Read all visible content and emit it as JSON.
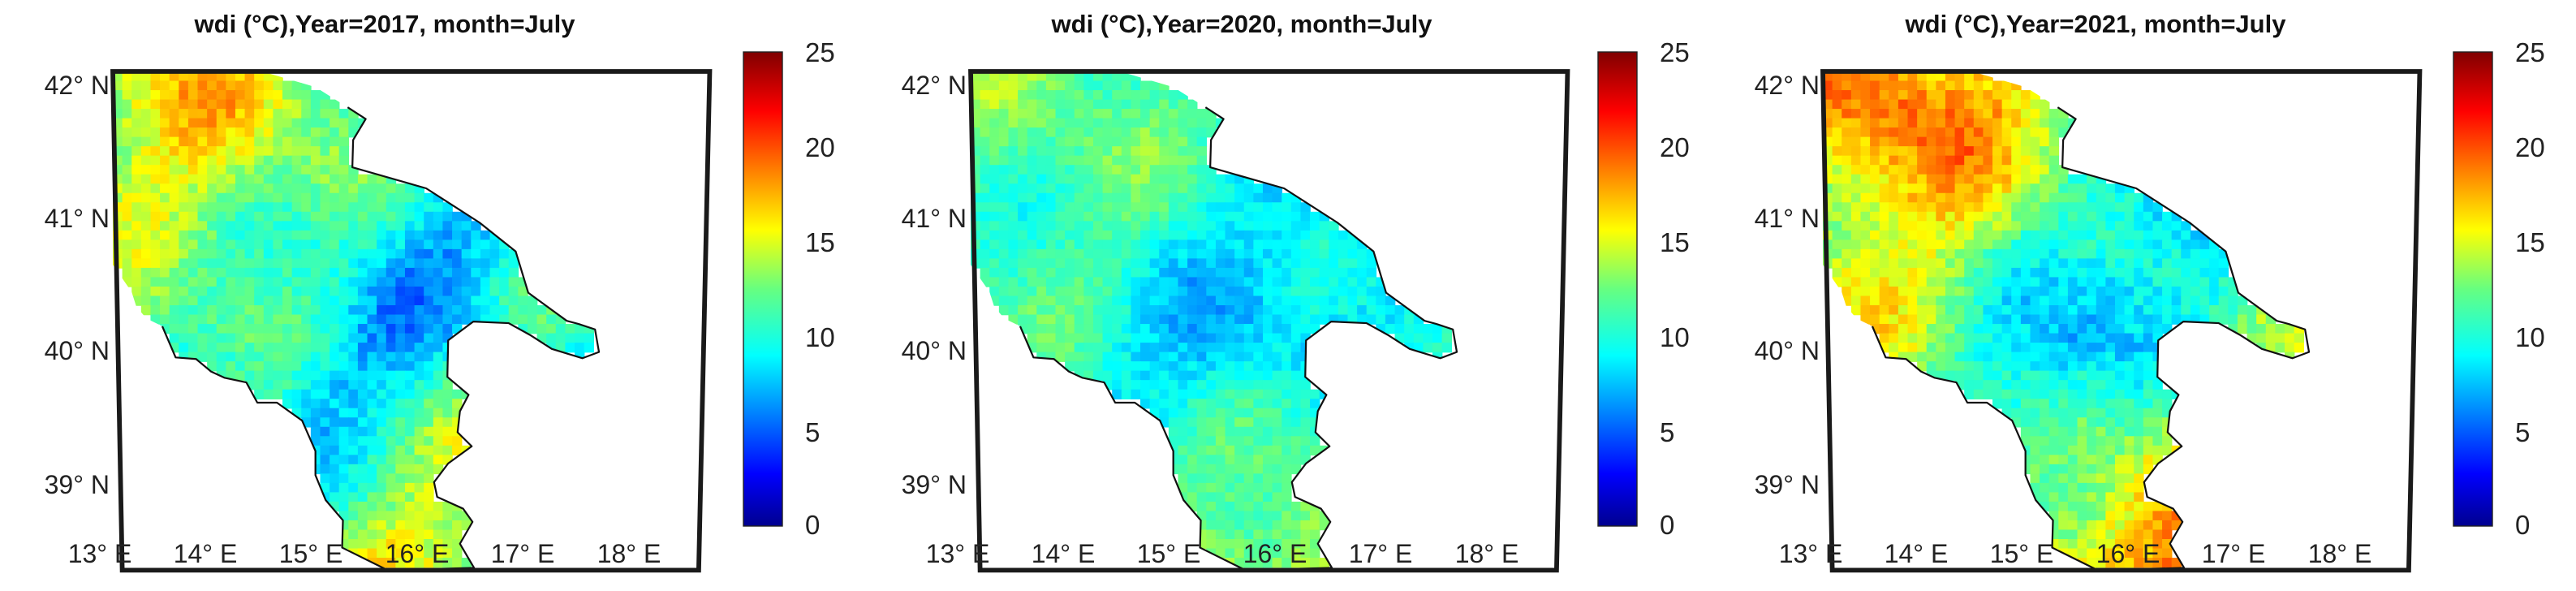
{
  "figure": {
    "panels": [
      {
        "title": "wdi (°C),Year=2017, month=July",
        "lat_labels": [
          "42° N",
          "41° N",
          "40° N",
          "39° N"
        ],
        "lon_labels": [
          "13° E",
          "14° E",
          "15° E",
          "16° E",
          "17° E",
          "18° E"
        ],
        "colorbar_ticks": [
          "25",
          "20",
          "15",
          "10",
          "5",
          "0"
        ],
        "pattern": {
          "base": 11.5,
          "ridge": 4.5,
          "west": 1.5,
          "east": -2.5,
          "south": 3.5,
          "northwest": 4.0,
          "noise": 1.4,
          "seed": 17
        }
      },
      {
        "title": "wdi (°C),Year=2020, month=July",
        "lat_labels": [
          "42° N",
          "41° N",
          "40° N",
          "39° N"
        ],
        "lon_labels": [
          "13° E",
          "14° E",
          "15° E",
          "16° E",
          "17° E",
          "18° E"
        ],
        "colorbar_ticks": [
          "25",
          "20",
          "15",
          "10",
          "5",
          "0"
        ],
        "pattern": {
          "base": 10.0,
          "ridge": 2.5,
          "west": 1.5,
          "east": -2.0,
          "south": 4.5,
          "northwest": 1.5,
          "noise": 1.2,
          "seed": 20
        }
      },
      {
        "title": "wdi (°C),Year=2021, month=July",
        "lat_labels": [
          "42° N",
          "41° N",
          "40° N",
          "39° N"
        ],
        "lon_labels": [
          "13° E",
          "14° E",
          "15° E",
          "16° E",
          "17° E",
          "18° E"
        ],
        "colorbar_ticks": [
          "25",
          "20",
          "15",
          "10",
          "5",
          "0"
        ],
        "pattern": {
          "base": 13.0,
          "ridge": 6.5,
          "west": 2.0,
          "east": -1.5,
          "south": 5.0,
          "northwest": 5.0,
          "noise": 1.5,
          "seed": 21
        }
      }
    ],
    "color_scale": {
      "min": 0,
      "max": 25,
      "colormap": "jet"
    },
    "colors": {
      "frame": "#1a1a1a",
      "coastline": "#111111",
      "background": "#ffffff"
    }
  }
}
